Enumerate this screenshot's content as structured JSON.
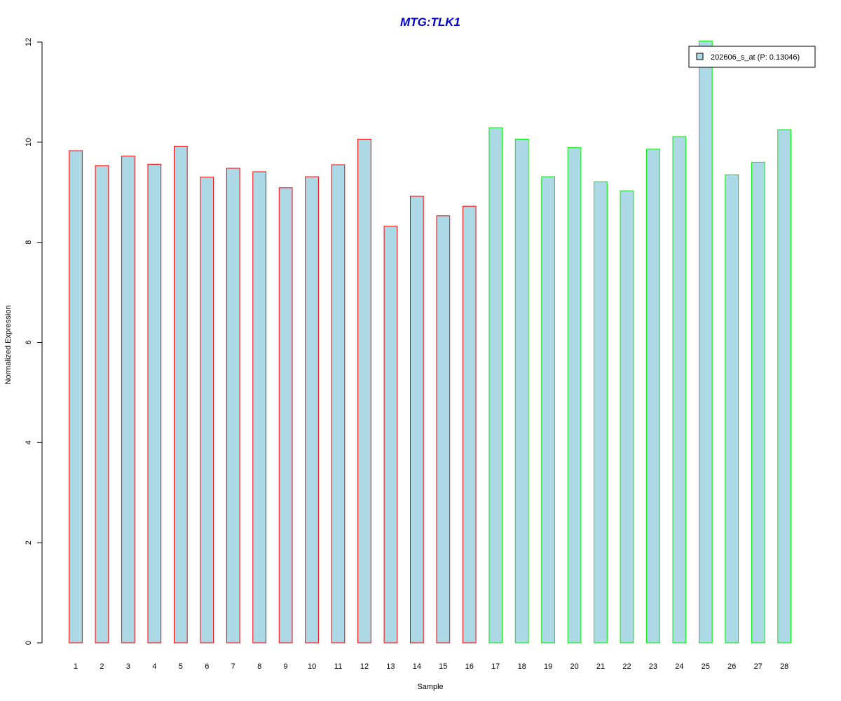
{
  "chart_data": {
    "type": "bar",
    "title": "MTG:TLK1",
    "xlabel": "Sample",
    "ylabel": "Normalized Expression",
    "ylim": [
      0,
      12
    ],
    "yticks": [
      0,
      2,
      4,
      6,
      8,
      10,
      12
    ],
    "categories": [
      "1",
      "2",
      "3",
      "4",
      "5",
      "6",
      "7",
      "8",
      "9",
      "10",
      "11",
      "12",
      "13",
      "14",
      "15",
      "16",
      "17",
      "18",
      "19",
      "20",
      "21",
      "22",
      "23",
      "24",
      "25",
      "26",
      "27",
      "28"
    ],
    "series": [
      {
        "name": "202606_s_at (P: 0.13046)",
        "values": [
          9.83,
          9.53,
          9.72,
          9.56,
          9.92,
          9.3,
          9.48,
          9.41,
          9.09,
          9.31,
          9.55,
          10.06,
          8.32,
          8.92,
          8.53,
          8.72,
          10.29,
          10.06,
          9.31,
          9.89,
          9.21,
          9.03,
          9.86,
          10.11,
          12.02,
          9.35,
          9.6,
          10.25
        ]
      }
    ],
    "group_of_sample": [
      "red",
      "red",
      "red",
      "red",
      "red",
      "red",
      "red",
      "red",
      "red",
      "red",
      "red",
      "red",
      "red",
      "red",
      "red",
      "red",
      "green",
      "green",
      "green",
      "green",
      "green",
      "green",
      "green",
      "green",
      "green",
      "green",
      "green",
      "green"
    ],
    "legend_position": "top-right",
    "grid": false,
    "colors": {
      "title": "#0000cc",
      "bar_fill": "#add8e6",
      "red": "#ff0000",
      "green": "#00ee00",
      "axis": "#000000"
    }
  }
}
